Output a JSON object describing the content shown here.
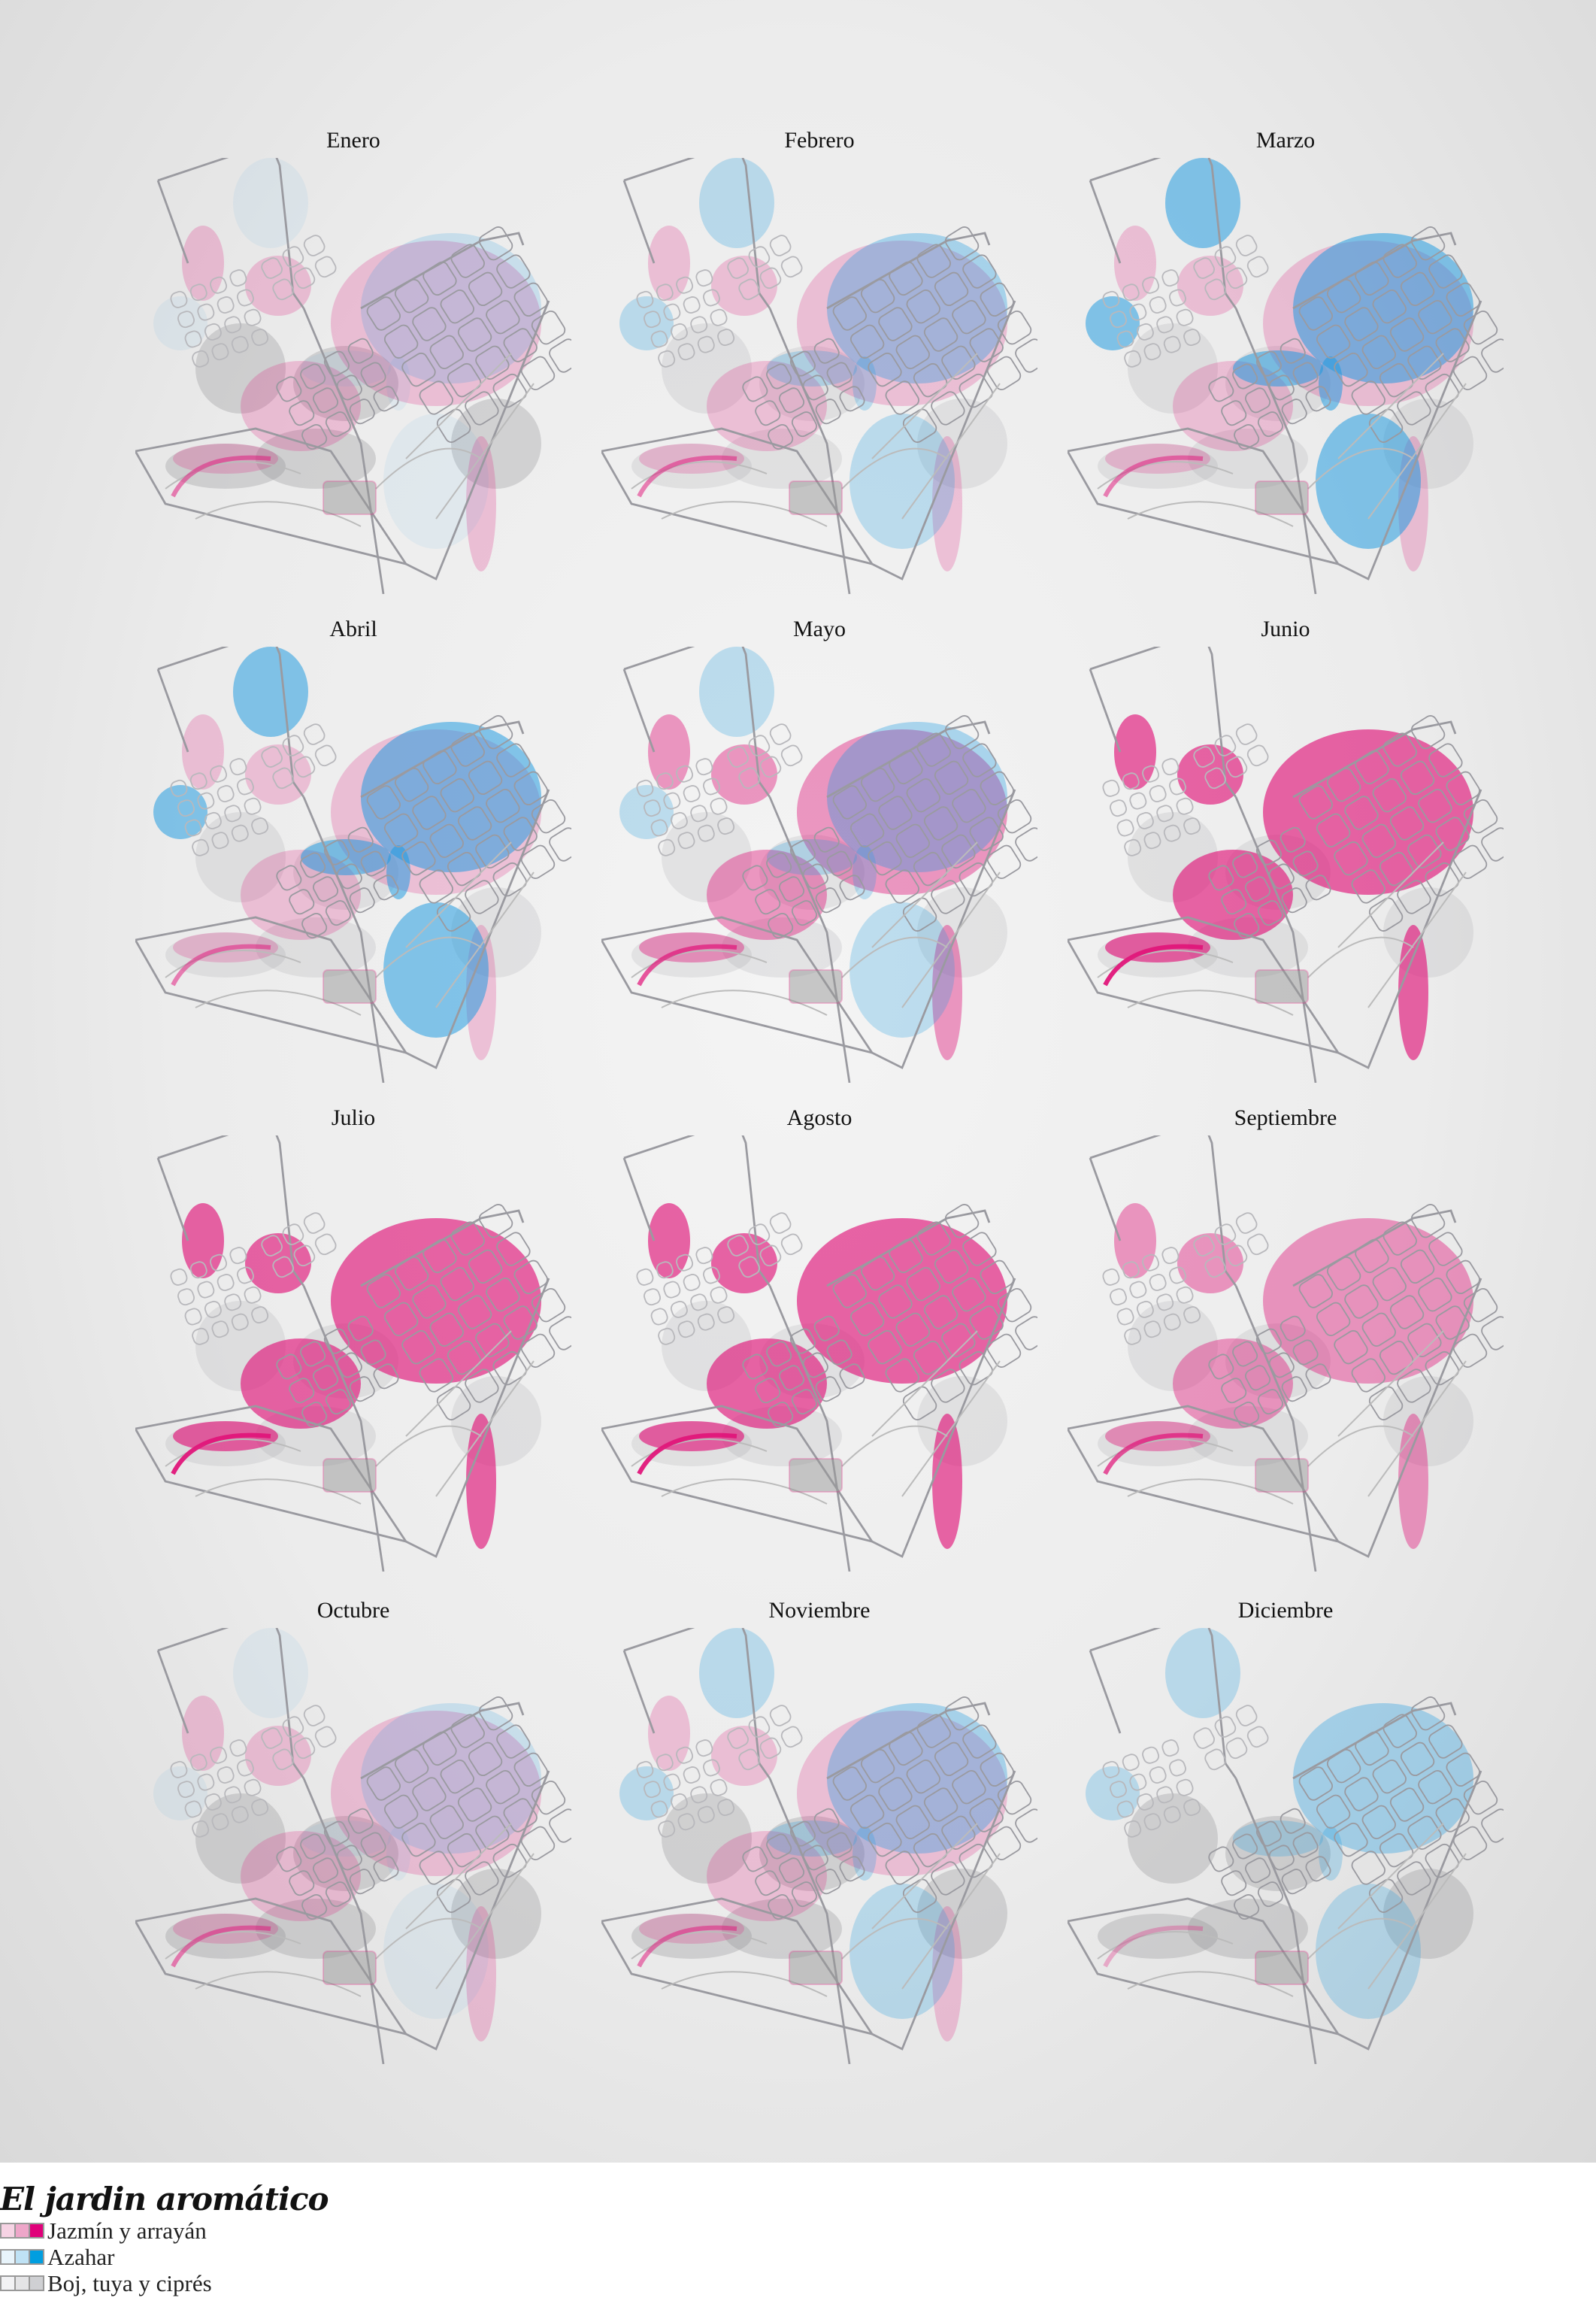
{
  "title": "El jardin aromático",
  "colors": {
    "pink": "#e0167a",
    "blue": "#1a9ae0",
    "gray": "#8a8a90",
    "lines": "#9a9aa0"
  },
  "legend": [
    {
      "label": "Jazmín y arrayán",
      "swatches": [
        "#f6d3e4",
        "#eea6c9",
        "#e0007a"
      ]
    },
    {
      "label": "Azahar",
      "swatches": [
        "#e8f4fb",
        "#bfe2f5",
        "#009ee0"
      ]
    },
    {
      "label": "Boj, tuya y ciprés",
      "swatches": [
        "#f2f2f4",
        "#e4e4e6",
        "#cfd0d3"
      ]
    }
  ],
  "months": [
    {
      "name": "Enero",
      "pink": 1,
      "blue": 1,
      "gray": 2
    },
    {
      "name": "Febrero",
      "pink": 1,
      "blue": 2,
      "gray": 1
    },
    {
      "name": "Marzo",
      "pink": 1,
      "blue": 3,
      "gray": 1
    },
    {
      "name": "Abril",
      "pink": 1,
      "blue": 3,
      "gray": 1
    },
    {
      "name": "Mayo",
      "pink": 2,
      "blue": 2,
      "gray": 1
    },
    {
      "name": "Junio",
      "pink": 3,
      "blue": 0,
      "gray": 1
    },
    {
      "name": "Julio",
      "pink": 3,
      "blue": 0,
      "gray": 1
    },
    {
      "name": "Agosto",
      "pink": 3,
      "blue": 0,
      "gray": 1
    },
    {
      "name": "Septiembre",
      "pink": 2,
      "blue": 0,
      "gray": 1
    },
    {
      "name": "Octubre",
      "pink": 1,
      "blue": 1,
      "gray": 2
    },
    {
      "name": "Noviembre",
      "pink": 1,
      "blue": 2,
      "gray": 2
    },
    {
      "name": "Diciembre",
      "pink": 0,
      "blue": 2,
      "gray": 2
    }
  ]
}
